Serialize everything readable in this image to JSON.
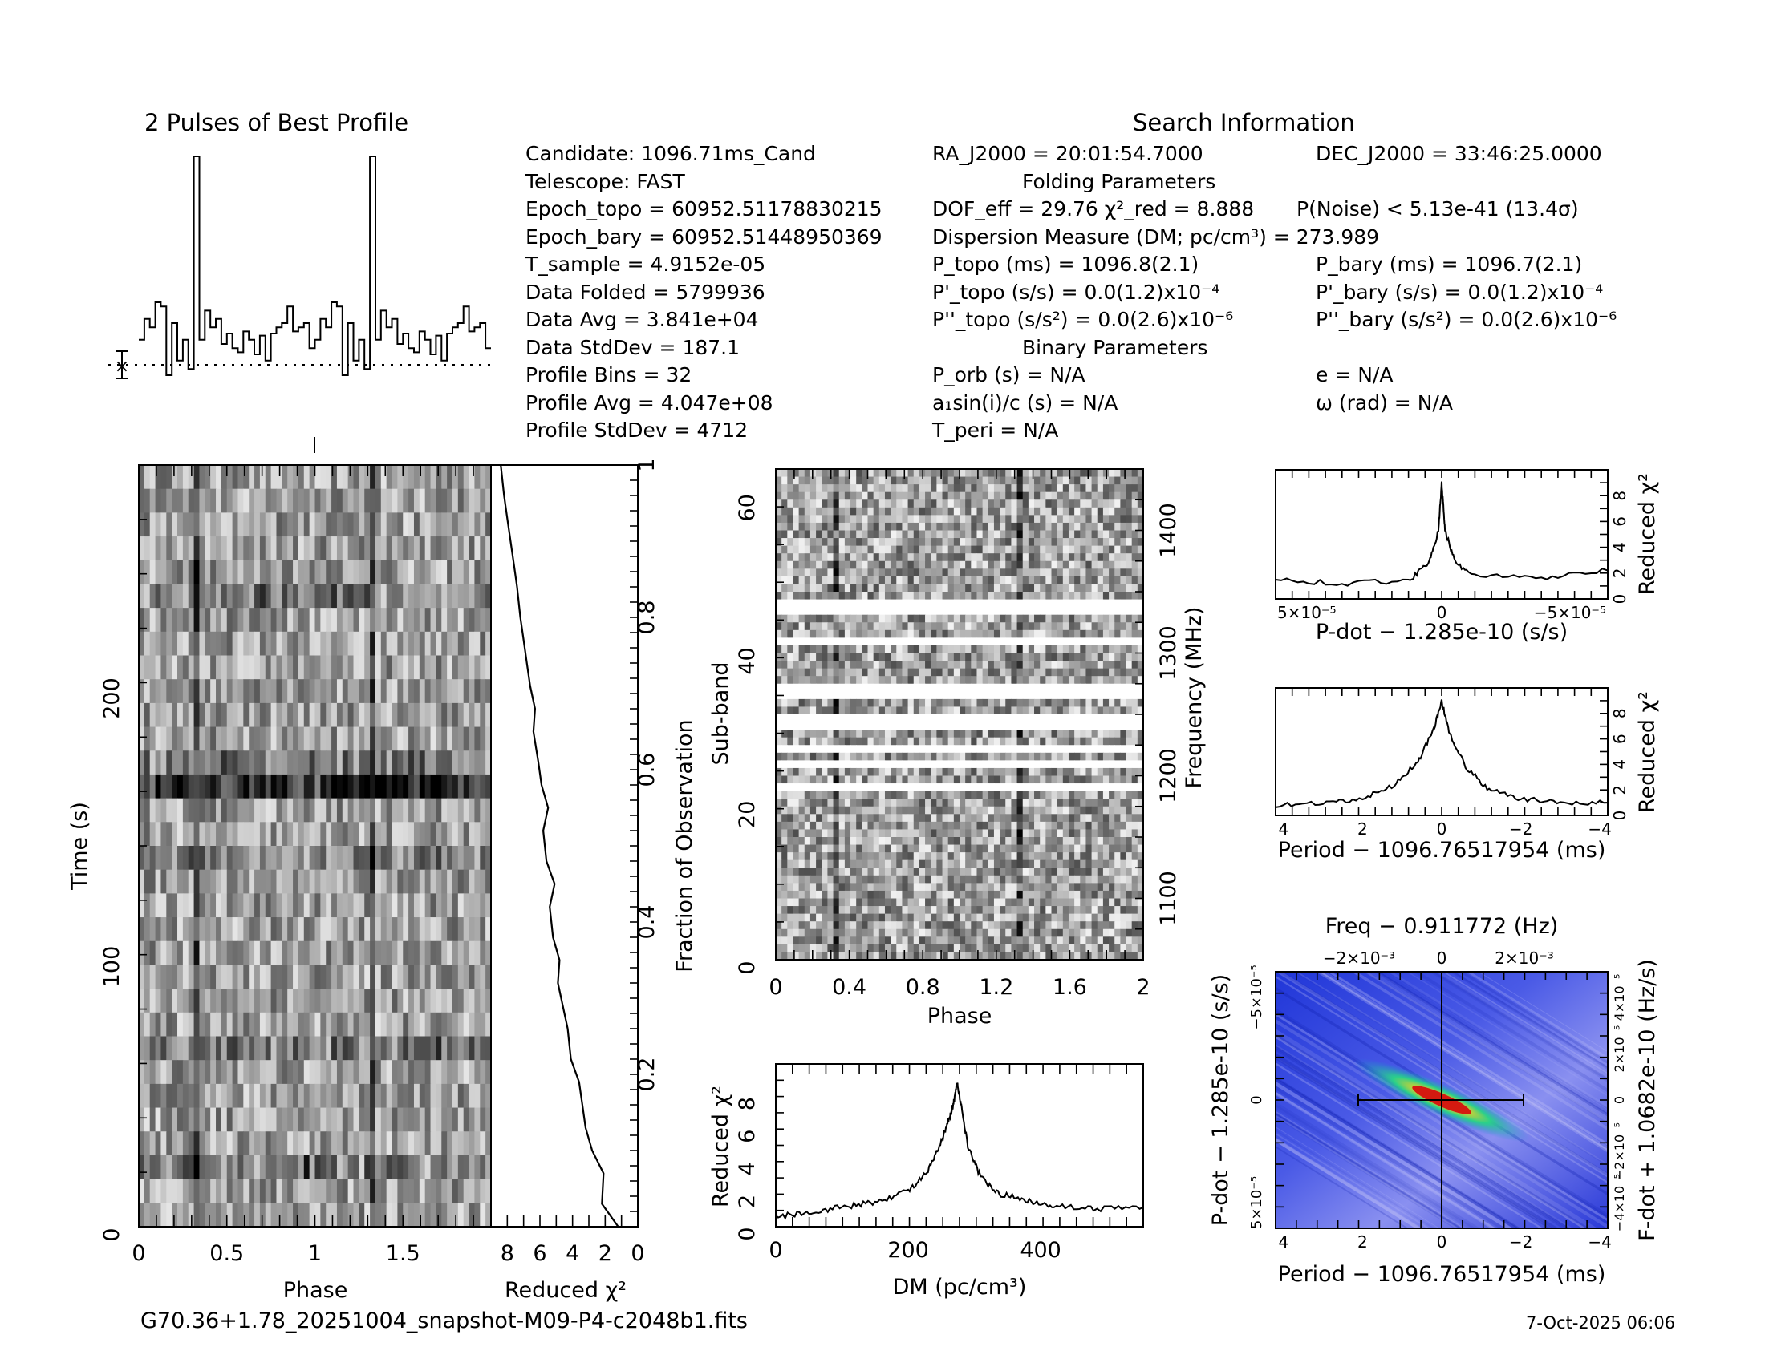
{
  "profile_title": "2 Pulses of Best Profile",
  "search_title": "Search Information",
  "info_left": [
    "Candidate:  1096.71ms_Cand",
    "Telescope:  FAST",
    "Epoch_topo = 60952.51178830215",
    "Epoch_bary = 60952.51448950369",
    "T_sample        =  4.9152e-05",
    "Data Folded     =  5799936",
    "Data Avg        =  3.841e+04",
    "Data StdDev     =  187.1",
    "Profile Bins    =  32",
    "Profile Avg     =  4.047e+08",
    "Profile StdDev  =  4712"
  ],
  "info_mid": [
    "RA_J2000 = 20:01:54.7000",
    "Folding Parameters",
    "DOF_eff = 29.76  χ²_red = 8.888",
    "Dispersion Measure (DM; pc/cm³) = 273.989",
    "P_topo (ms) =  1096.8(2.1)",
    "P'_topo (s/s) = 0.0(1.2)x10⁻⁴",
    "P''_topo (s/s²) = 0.0(2.6)x10⁻⁶",
    "Binary Parameters",
    "P_orb (s) = N/A",
    "a₁sin(i)/c (s) = N/A",
    "T_peri = N/A"
  ],
  "info_right": [
    "DEC_J2000 = 33:46:25.0000",
    "",
    "P(Noise) < 5.13e-41  (13.4σ)",
    "",
    "P_bary (ms) =  1096.7(2.1)",
    "P'_bary (s/s) = 0.0(1.2)x10⁻⁴",
    "P''_bary (s/s²) = 0.0(2.6)x10⁻⁶",
    "",
    "e = N/A",
    "ω (rad) = N/A",
    ""
  ],
  "filename": "G70.36+1.78_20251004_snapshot-M09-P4-c2048b1.fits",
  "date": "7-Oct-2025 06:06",
  "colors": {
    "ink": "#000000",
    "crosshair_bg": "#1c2fd6",
    "peak": "#e0201a",
    "mid": "#27c9b4"
  },
  "chart_data": [
    {
      "id": "profile",
      "type": "line",
      "title": "2 Pulses of Best Profile",
      "xlim": [
        0,
        2
      ],
      "bins": 32,
      "values": [
        0.12,
        0.22,
        0.18,
        0.3,
        0.28,
        -0.05,
        0.2,
        0.02,
        0.12,
        -0.02,
        1.0,
        0.12,
        0.26,
        0.18,
        0.22,
        0.1,
        0.15,
        0.08,
        0.06,
        0.16,
        0.12,
        0.05,
        0.14,
        0.02,
        0.15,
        0.18,
        0.2,
        0.28,
        0.16,
        0.18,
        0.2,
        0.08
      ]
    },
    {
      "id": "time_phase",
      "type": "heatmap",
      "xlabel": "Phase",
      "ylabel": "Time (s)",
      "xlim": [
        0,
        2
      ],
      "ylim": [
        0,
        284
      ],
      "xticks": [
        "0",
        "0.5",
        "1",
        "1.5"
      ],
      "yticks": [
        "0",
        "100",
        "200"
      ]
    },
    {
      "id": "chi_time",
      "type": "line",
      "xlabel": "Reduced χ²",
      "ylabel": "Fraction of Observation",
      "xlim": [
        9,
        0
      ],
      "ylim": [
        0,
        1
      ],
      "xticks": [
        "8",
        "6",
        "4",
        "2",
        "0"
      ],
      "yticks": [
        "0.2",
        "0.4",
        "0.6",
        "0.8",
        "1"
      ],
      "x": [
        1.2,
        2.2,
        2.1,
        2.8,
        3.2,
        3.4,
        3.6,
        4.1,
        4.3,
        4.6,
        4.9,
        4.8,
        5.2,
        5.4,
        5.1,
        5.6,
        5.8,
        5.5,
        5.9,
        6.1,
        6.4,
        6.3,
        6.6,
        6.8,
        7.0,
        7.2,
        7.4,
        7.6,
        7.8,
        8.0,
        8.2,
        8.4
      ],
      "y": [
        0,
        0.03,
        0.07,
        0.1,
        0.13,
        0.16,
        0.19,
        0.22,
        0.26,
        0.29,
        0.32,
        0.35,
        0.38,
        0.42,
        0.45,
        0.48,
        0.52,
        0.55,
        0.58,
        0.61,
        0.65,
        0.68,
        0.71,
        0.74,
        0.77,
        0.8,
        0.84,
        0.87,
        0.9,
        0.93,
        0.96,
        1.0
      ]
    },
    {
      "id": "subband_phase",
      "type": "heatmap",
      "xlabel": "Phase",
      "ylabel": "Sub-band",
      "y2label": "Frequency (MHz)",
      "xlim": [
        0,
        2
      ],
      "ylim": [
        0,
        64
      ],
      "y2lim": [
        1050,
        1450
      ],
      "xticks": [
        "0",
        "0.4",
        "0.8",
        "1.2",
        "1.6",
        "2"
      ],
      "yticks": [
        "0",
        "20",
        "40",
        "60"
      ],
      "y2ticks": [
        "1100",
        "1200",
        "1300",
        "1400"
      ],
      "masked_subbands": [
        22,
        25,
        27,
        30,
        31,
        34,
        35,
        41,
        45,
        46
      ]
    },
    {
      "id": "dm_curve",
      "type": "line",
      "xlabel": "DM (pc/cm³)",
      "ylabel": "Reduced χ²",
      "xlim": [
        0,
        555
      ],
      "ylim": [
        0,
        10
      ],
      "xticks": [
        "0",
        "200",
        "400"
      ],
      "yticks": [
        "0",
        "2",
        "4",
        "6",
        "8"
      ],
      "x": [
        0,
        50,
        100,
        150,
        200,
        230,
        250,
        262,
        268,
        274,
        280,
        290,
        310,
        340,
        380,
        420,
        480,
        555
      ],
      "y": [
        0.6,
        0.9,
        1.2,
        1.5,
        2.2,
        3.4,
        5.2,
        6.6,
        7.5,
        8.9,
        7.4,
        5.0,
        3.0,
        2.0,
        1.6,
        1.3,
        1.1,
        1.2
      ]
    },
    {
      "id": "pdot_curve",
      "type": "line",
      "xlabel": "P-dot − 1.285e-10 (s/s)",
      "ylabel": "Reduced χ²",
      "xlim": [
        5e-05,
        -5e-05
      ],
      "ylim": [
        0,
        10
      ],
      "xticks": [
        "5×10⁻⁵",
        "0",
        "−5×10⁻⁵"
      ],
      "yticks": [
        "0",
        "2",
        "4",
        "6",
        "8"
      ],
      "x": [
        5e-05,
        3e-05,
        1e-05,
        4e-06,
        1e-06,
        0,
        -1e-06,
        -4e-06,
        -1e-05,
        -3e-05,
        -5e-05
      ],
      "y": [
        1.5,
        1.2,
        1.4,
        2.8,
        5.2,
        8.9,
        5.4,
        2.8,
        1.8,
        1.6,
        2.2
      ]
    },
    {
      "id": "period_curve",
      "type": "line",
      "xlabel": "Period − 1096.76517954 (ms)",
      "ylabel": "Reduced χ²",
      "xlim": [
        4.2,
        -4.2
      ],
      "ylim": [
        0,
        10
      ],
      "xticks": [
        "4",
        "2",
        "0",
        "−2",
        "−4"
      ],
      "yticks": [
        "0",
        "2",
        "4",
        "6",
        "8"
      ],
      "x": [
        4.2,
        3,
        2,
        1.2,
        0.6,
        0.2,
        0,
        -0.2,
        -0.6,
        -1.2,
        -2,
        -3,
        -4.2
      ],
      "y": [
        0.8,
        0.9,
        1.3,
        2.4,
        4.2,
        6.8,
        8.9,
        6.5,
        3.8,
        2.0,
        1.3,
        1.0,
        1.0
      ]
    },
    {
      "id": "ppdot_plane",
      "type": "heatmap",
      "title": "Freq − 0.911772 (Hz)",
      "xlabel": "Period − 1096.76517954 (ms)",
      "ylabel": "P-dot − 1.285e-10 (s/s)",
      "y2label": "F-dot + 1.0682e-10 (Hz/s)",
      "xlim": [
        4.2,
        -4.2
      ],
      "ylim": [
        6e-05,
        -6e-05
      ],
      "xticks": [
        "4",
        "2",
        "0",
        "−2",
        "−4"
      ],
      "x2ticks": [
        "−2×10⁻³",
        "0",
        "2×10⁻³"
      ],
      "yticks": [
        "−5×10⁻⁵",
        "0",
        "5×10⁻⁵"
      ],
      "y2ticks": [
        "4×10⁻⁵",
        "2×10⁻⁵",
        "0",
        "−2×10⁻⁵",
        "−4×10⁻⁵"
      ]
    }
  ]
}
